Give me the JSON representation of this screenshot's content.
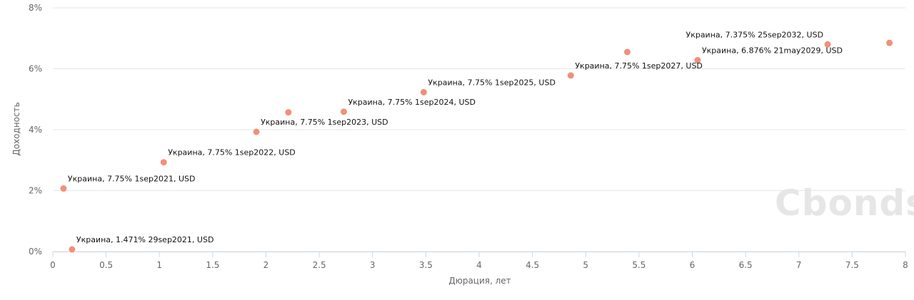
{
  "chart_data": {
    "type": "scatter",
    "xlabel": "Дюрация, лет",
    "ylabel": "Доходность",
    "xlim": [
      0,
      8
    ],
    "ylim": [
      0,
      8
    ],
    "x_ticks": [
      "0",
      "0.5",
      "1",
      "1.5",
      "2",
      "2.5",
      "3",
      "3.5",
      "4",
      "4.5",
      "5",
      "5.5",
      "6",
      "6.5",
      "7",
      "7.5",
      "8"
    ],
    "y_ticks": [
      "0%",
      "2%",
      "4%",
      "6%",
      "8%"
    ],
    "grid": true,
    "marker_color": "#f0907a",
    "series": [
      {
        "points": [
          {
            "x": 0.18,
            "y": 0.07,
            "label": "Украина, 1.471% 29sep2021, USD"
          },
          {
            "x": 0.1,
            "y": 2.07,
            "label": "Украина, 7.75% 1sep2021, USD"
          },
          {
            "x": 1.04,
            "y": 2.93,
            "label": "Украина, 7.75% 1sep2022, USD"
          },
          {
            "x": 1.91,
            "y": 3.93,
            "label": "Украина, 7.75% 1sep2023, USD"
          },
          {
            "x": 2.21,
            "y": 4.57,
            "label": ""
          },
          {
            "x": 2.73,
            "y": 4.59,
            "label": "Украина, 7.75% 1sep2024, USD"
          },
          {
            "x": 3.48,
            "y": 5.23,
            "label": "Украина, 7.75% 1sep2025, USD"
          },
          {
            "x": 4.86,
            "y": 5.78,
            "label": "Украина, 7.75% 1sep2027, USD"
          },
          {
            "x": 5.39,
            "y": 6.55,
            "label": ""
          },
          {
            "x": 6.05,
            "y": 6.28,
            "label": "Украина, 6.876% 21may2029, USD"
          },
          {
            "x": 7.27,
            "y": 6.8,
            "label": "Украина, 7.375% 25sep2032, USD"
          },
          {
            "x": 7.85,
            "y": 6.85,
            "label": ""
          }
        ]
      }
    ]
  },
  "watermark": {
    "text": "Cbonds"
  }
}
